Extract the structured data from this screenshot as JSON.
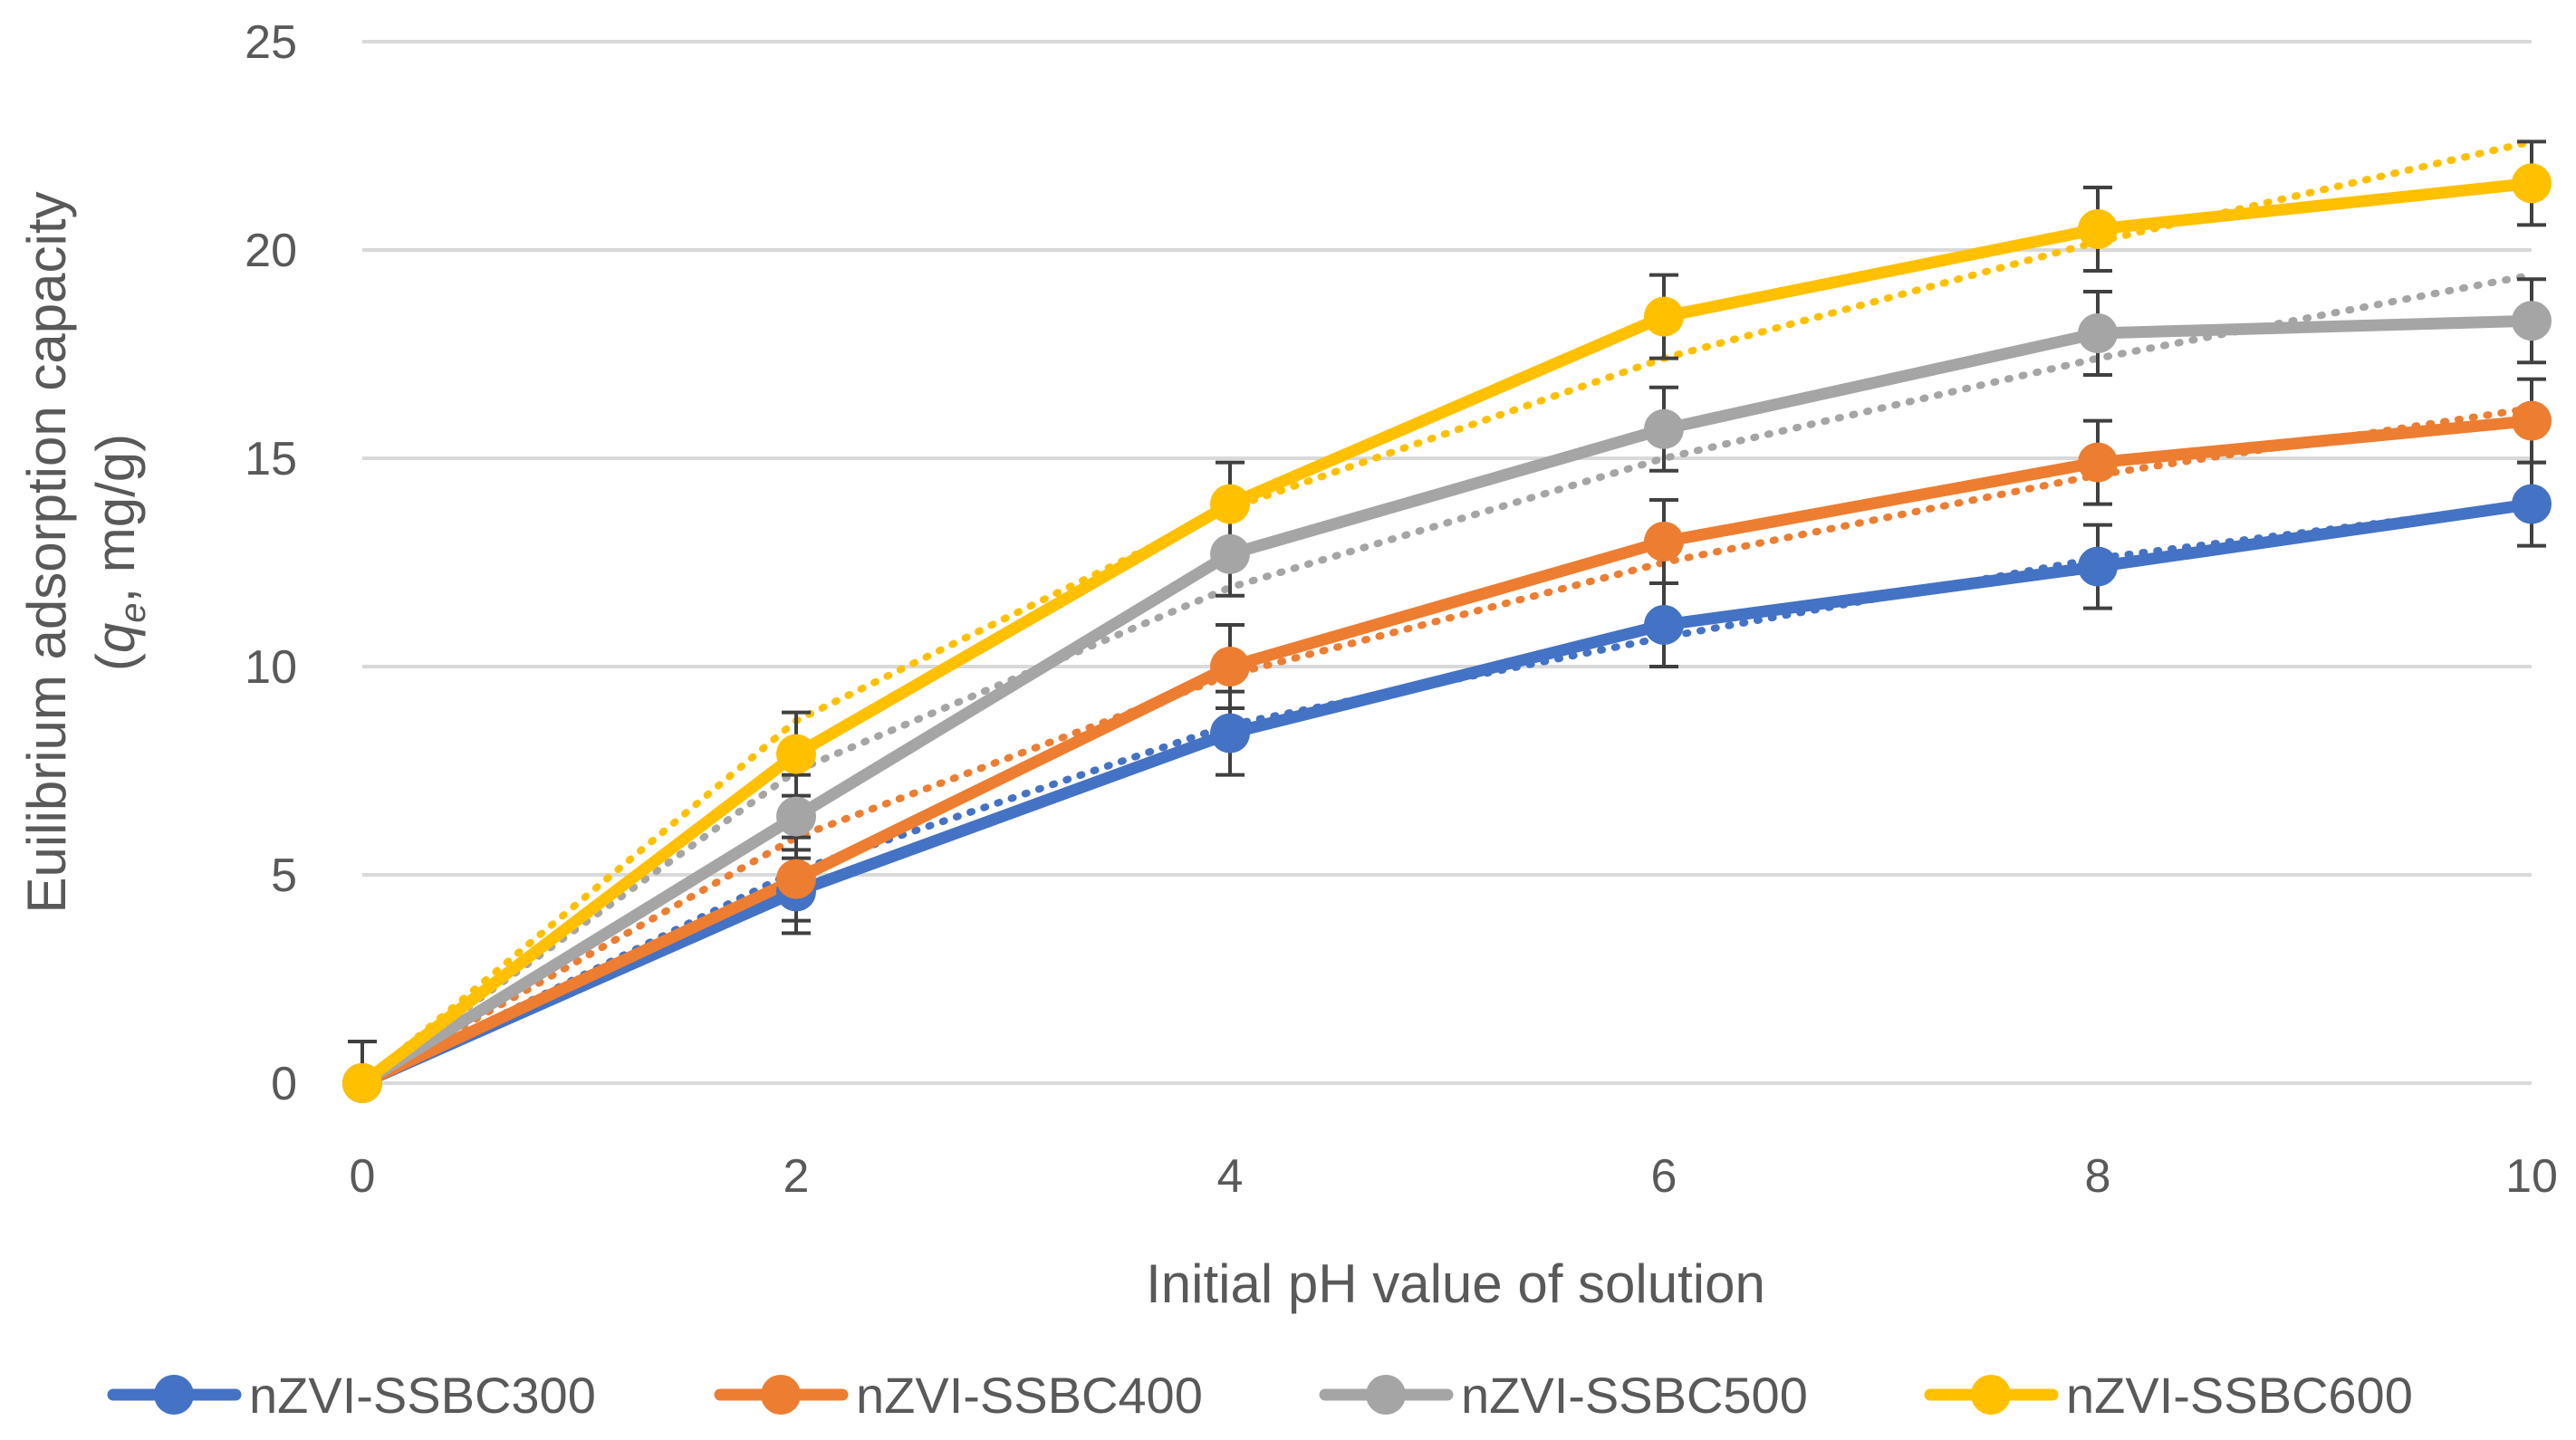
{
  "chart_data": {
    "type": "line",
    "title": "",
    "xlabel": "Initial pH value of solution",
    "ylabel_line1": "Euilibrium adsorption capacity",
    "ylabel_line2_prefix": "(",
    "ylabel_symbol": "q",
    "ylabel_subscript": "e",
    "ylabel_line2_suffix": ", mg/g)",
    "x": [
      0,
      2,
      4,
      6,
      8,
      10
    ],
    "xlim": [
      0,
      10
    ],
    "ylim": [
      0,
      25
    ],
    "xticks": [
      "0",
      "2",
      "4",
      "6",
      "8",
      "10"
    ],
    "yticks": [
      "0",
      "5",
      "10",
      "15",
      "20",
      "25"
    ],
    "grid": true,
    "legend_position": "bottom",
    "series": [
      {
        "name": "nZVI-SSBC300",
        "color": "#4472C4",
        "values": [
          0,
          4.6,
          8.4,
          11.0,
          12.4,
          13.9
        ],
        "error": [
          1.0,
          1.0,
          1.0,
          1.0,
          1.0,
          1.0
        ],
        "trend": [
          0,
          5.1,
          8.6,
          10.7,
          12.6,
          13.9
        ]
      },
      {
        "name": "nZVI-SSBC400",
        "color": "#ED7D31",
        "values": [
          0,
          4.9,
          10.0,
          13.0,
          14.9,
          15.9
        ],
        "error": [
          1.0,
          1.0,
          1.0,
          1.0,
          1.0,
          1.0
        ],
        "trend": [
          0,
          5.9,
          9.8,
          12.5,
          14.6,
          16.2
        ]
      },
      {
        "name": "nZVI-SSBC500",
        "color": "#A5A5A5",
        "values": [
          0,
          6.4,
          12.7,
          15.7,
          18.0,
          18.3
        ],
        "error": [
          1.0,
          1.0,
          1.0,
          1.0,
          1.0,
          1.0
        ],
        "trend": [
          0,
          7.5,
          11.9,
          15.0,
          17.4,
          19.4
        ]
      },
      {
        "name": "nZVI-SSBC600",
        "color": "#FFC000",
        "values": [
          0,
          7.9,
          13.9,
          18.4,
          20.5,
          21.6
        ],
        "error": [
          1.0,
          1.0,
          1.0,
          1.0,
          1.0,
          1.0
        ],
        "trend": [
          0,
          8.7,
          13.8,
          17.4,
          20.2,
          22.6
        ]
      }
    ]
  }
}
